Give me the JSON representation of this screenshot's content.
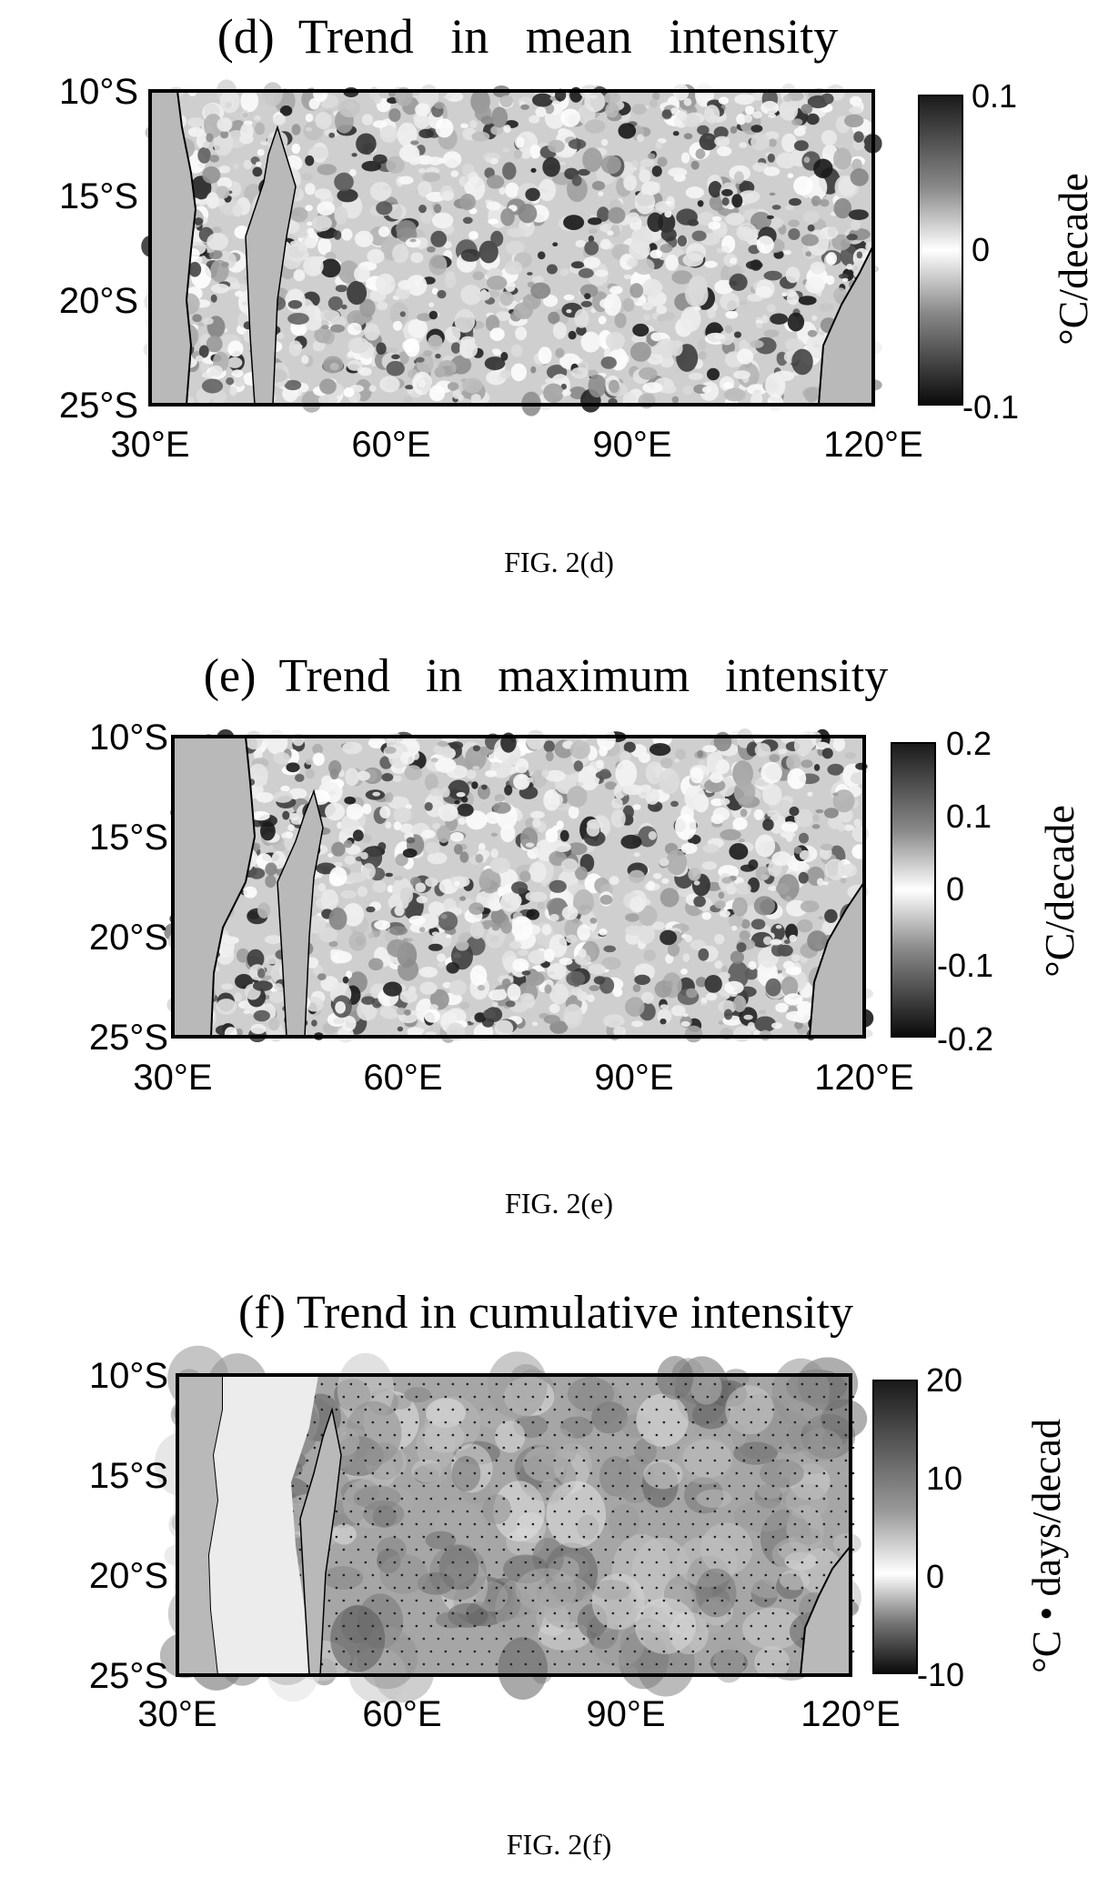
{
  "chart_data": [
    {
      "type": "heatmap",
      "title": "(d)  Trend   in   mean   intensity",
      "caption": "FIG. 2(d)",
      "xlabel": "",
      "ylabel": "",
      "x_ticks": [
        "30°E",
        "60°E",
        "90°E",
        "120°E"
      ],
      "y_ticks": [
        "10°S",
        "15°S",
        "20°S",
        "25°S"
      ],
      "xlim": [
        30,
        120
      ],
      "ylim": [
        -25,
        -10
      ],
      "colorbar": {
        "label": "°C/decade",
        "range": [
          -0.1,
          0.1
        ],
        "ticks": [
          "0.1",
          "0",
          "-0.1"
        ],
        "colormap": "grayscale (dark at extremes, white at 0)"
      },
      "land_color": "#b9b9b9",
      "grid": false
    },
    {
      "type": "heatmap",
      "title": "(e)  Trend   in   maximum   intensity",
      "caption": "FIG. 2(e)",
      "xlabel": "",
      "ylabel": "",
      "x_ticks": [
        "30°E",
        "60°E",
        "90°E",
        "120°E"
      ],
      "y_ticks": [
        "10°S",
        "15°S",
        "20°S",
        "25°S"
      ],
      "xlim": [
        30,
        120
      ],
      "ylim": [
        -25,
        -10
      ],
      "colorbar": {
        "label": "°C/decade",
        "range": [
          -0.2,
          0.2
        ],
        "ticks": [
          "0.2",
          "0.1",
          "0",
          "-0.1",
          "-0.2"
        ],
        "colormap": "grayscale (dark at extremes, white at 0)"
      },
      "land_color": "#b9b9b9",
      "grid": false
    },
    {
      "type": "heatmap",
      "title": "(f) Trend in cumulative intensity",
      "caption": "FIG. 2(f)",
      "xlabel": "",
      "ylabel": "",
      "x_ticks": [
        "30°E",
        "60°E",
        "90°E",
        "120°E"
      ],
      "y_ticks": [
        "10°S",
        "15°S",
        "20°S",
        "25°S"
      ],
      "xlim": [
        30,
        120
      ],
      "ylim": [
        -25,
        -10
      ],
      "colorbar": {
        "label": "°C • days/decad",
        "range": [
          -10,
          20
        ],
        "ticks": [
          "20",
          "10",
          "0",
          "-10"
        ],
        "colormap": "grayscale (dark at extremes, white at 0)"
      },
      "land_color": "#b9b9b9",
      "stippling": "dots mark statistically significant trends",
      "grid": false
    }
  ]
}
